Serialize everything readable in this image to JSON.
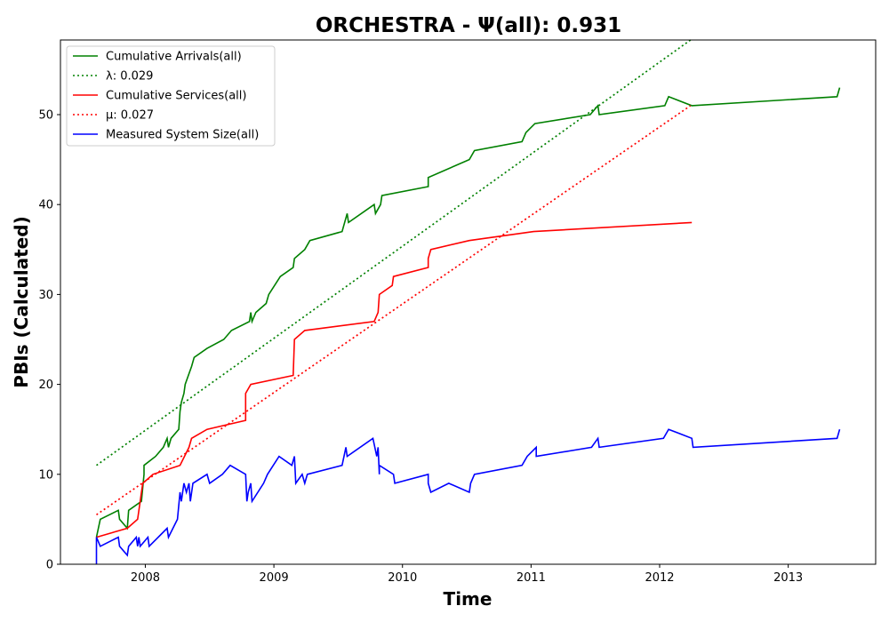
{
  "chart_data": {
    "type": "line",
    "title": "ORCHESTRA -  Ψ(all): 0.931",
    "xlabel": "Time",
    "ylabel": "PBIs (Calculated)",
    "xlim": [
      2007.34,
      2013.68
    ],
    "ylim": [
      0,
      58.3
    ],
    "xticks": [
      2008,
      2009,
      2010,
      2011,
      2012,
      2013
    ],
    "yticks": [
      0,
      10,
      20,
      30,
      40,
      50
    ],
    "grid": false,
    "legend_position": "top-left",
    "series": [
      {
        "name": "Cumulative Arrivals(all)",
        "style": "solid",
        "color": "#008000",
        "points": [
          [
            2007.62,
            3
          ],
          [
            2007.65,
            5
          ],
          [
            2007.79,
            6
          ],
          [
            2007.8,
            5
          ],
          [
            2007.86,
            4
          ],
          [
            2007.87,
            6
          ],
          [
            2007.97,
            7
          ],
          [
            2007.99,
            10
          ],
          [
            2007.99,
            11
          ],
          [
            2008.08,
            12
          ],
          [
            2008.14,
            13
          ],
          [
            2008.17,
            14
          ],
          [
            2008.18,
            13
          ],
          [
            2008.2,
            14
          ],
          [
            2008.26,
            15
          ],
          [
            2008.27,
            17
          ],
          [
            2008.28,
            18
          ],
          [
            2008.3,
            19
          ],
          [
            2008.31,
            20
          ],
          [
            2008.36,
            22
          ],
          [
            2008.38,
            23
          ],
          [
            2008.48,
            24
          ],
          [
            2008.61,
            25
          ],
          [
            2008.67,
            26
          ],
          [
            2008.81,
            27
          ],
          [
            2008.82,
            28
          ],
          [
            2008.83,
            27
          ],
          [
            2008.86,
            28
          ],
          [
            2008.94,
            29
          ],
          [
            2008.96,
            30
          ],
          [
            2009.05,
            32
          ],
          [
            2009.15,
            33
          ],
          [
            2009.16,
            34
          ],
          [
            2009.24,
            35
          ],
          [
            2009.28,
            36
          ],
          [
            2009.53,
            37
          ],
          [
            2009.57,
            39
          ],
          [
            2009.58,
            38
          ],
          [
            2009.78,
            40
          ],
          [
            2009.79,
            39
          ],
          [
            2009.83,
            40
          ],
          [
            2009.84,
            41
          ],
          [
            2010.2,
            42
          ],
          [
            2010.2,
            43
          ],
          [
            2010.52,
            45
          ],
          [
            2010.56,
            46
          ],
          [
            2010.93,
            47
          ],
          [
            2010.96,
            48
          ],
          [
            2011.03,
            49
          ],
          [
            2011.46,
            50
          ],
          [
            2011.52,
            51
          ],
          [
            2011.53,
            50
          ],
          [
            2012.04,
            51
          ],
          [
            2012.07,
            52
          ],
          [
            2012.25,
            51
          ],
          [
            2013.38,
            52
          ],
          [
            2013.4,
            53
          ]
        ]
      },
      {
        "name": "λ: 0.029",
        "style": "dotted",
        "color": "#008000",
        "points": [
          [
            2007.62,
            11
          ],
          [
            2012.24,
            58.3
          ]
        ]
      },
      {
        "name": "Cumulative Services(all)",
        "style": "solid",
        "color": "#ff0000",
        "points": [
          [
            2007.62,
            3
          ],
          [
            2007.86,
            4
          ],
          [
            2007.94,
            5
          ],
          [
            2007.96,
            7
          ],
          [
            2007.97,
            8
          ],
          [
            2007.98,
            9
          ],
          [
            2008.06,
            10
          ],
          [
            2008.27,
            11
          ],
          [
            2008.34,
            13
          ],
          [
            2008.36,
            14
          ],
          [
            2008.48,
            15
          ],
          [
            2008.78,
            16
          ],
          [
            2008.78,
            19
          ],
          [
            2008.82,
            20
          ],
          [
            2009.15,
            21
          ],
          [
            2009.16,
            25
          ],
          [
            2009.24,
            26
          ],
          [
            2009.78,
            27
          ],
          [
            2009.81,
            28
          ],
          [
            2009.82,
            30
          ],
          [
            2009.92,
            31
          ],
          [
            2009.93,
            32
          ],
          [
            2010.2,
            33
          ],
          [
            2010.2,
            34
          ],
          [
            2010.22,
            35
          ],
          [
            2010.52,
            36
          ],
          [
            2011.02,
            37
          ],
          [
            2012.25,
            38
          ]
        ]
      },
      {
        "name": "μ: 0.027",
        "style": "dotted",
        "color": "#ff0000",
        "points": [
          [
            2007.62,
            5.5
          ],
          [
            2012.24,
            51
          ]
        ]
      },
      {
        "name": "Measured System Size(all)",
        "style": "solid",
        "color": "#0000ff",
        "points": [
          [
            2007.62,
            0
          ],
          [
            2007.62,
            3
          ],
          [
            2007.65,
            2
          ],
          [
            2007.79,
            3
          ],
          [
            2007.8,
            2
          ],
          [
            2007.86,
            1
          ],
          [
            2007.87,
            2
          ],
          [
            2007.93,
            3
          ],
          [
            2007.94,
            2
          ],
          [
            2007.95,
            3
          ],
          [
            2007.96,
            2
          ],
          [
            2008.02,
            3
          ],
          [
            2008.03,
            2
          ],
          [
            2008.17,
            4
          ],
          [
            2008.18,
            3
          ],
          [
            2008.25,
            5
          ],
          [
            2008.27,
            8
          ],
          [
            2008.28,
            7
          ],
          [
            2008.3,
            9
          ],
          [
            2008.32,
            8
          ],
          [
            2008.34,
            9
          ],
          [
            2008.35,
            7
          ],
          [
            2008.37,
            9
          ],
          [
            2008.48,
            10
          ],
          [
            2008.5,
            9
          ],
          [
            2008.6,
            10
          ],
          [
            2008.66,
            11
          ],
          [
            2008.78,
            10
          ],
          [
            2008.79,
            7
          ],
          [
            2008.8,
            8
          ],
          [
            2008.82,
            9
          ],
          [
            2008.83,
            7
          ],
          [
            2008.92,
            9
          ],
          [
            2008.95,
            10
          ],
          [
            2009.04,
            12
          ],
          [
            2009.14,
            11
          ],
          [
            2009.16,
            12
          ],
          [
            2009.17,
            9
          ],
          [
            2009.22,
            10
          ],
          [
            2009.24,
            9
          ],
          [
            2009.26,
            10
          ],
          [
            2009.53,
            11
          ],
          [
            2009.56,
            13
          ],
          [
            2009.57,
            12
          ],
          [
            2009.77,
            14
          ],
          [
            2009.8,
            12
          ],
          [
            2009.81,
            13
          ],
          [
            2009.82,
            10
          ],
          [
            2009.82,
            11
          ],
          [
            2009.93,
            10
          ],
          [
            2009.94,
            9
          ],
          [
            2010.2,
            10
          ],
          [
            2010.2,
            9
          ],
          [
            2010.22,
            8
          ],
          [
            2010.36,
            9
          ],
          [
            2010.52,
            8
          ],
          [
            2010.53,
            9
          ],
          [
            2010.56,
            10
          ],
          [
            2010.93,
            11
          ],
          [
            2010.97,
            12
          ],
          [
            2011.04,
            13
          ],
          [
            2011.04,
            12
          ],
          [
            2011.47,
            13
          ],
          [
            2011.52,
            14
          ],
          [
            2011.53,
            13
          ],
          [
            2012.03,
            14
          ],
          [
            2012.07,
            15
          ],
          [
            2012.25,
            14
          ],
          [
            2012.26,
            13
          ],
          [
            2013.38,
            14
          ],
          [
            2013.4,
            15
          ]
        ]
      }
    ]
  }
}
